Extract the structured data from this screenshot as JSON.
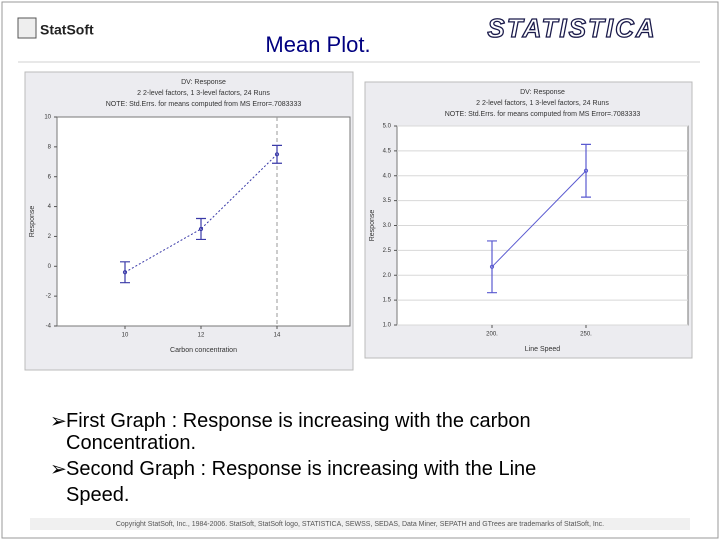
{
  "header": {
    "logo": "StatSoft",
    "title": "Mean Plot.",
    "brand": "STATISTICA"
  },
  "chart_data": [
    {
      "type": "line",
      "subtitle": [
        "DV: Response",
        "2 2-level factors, 1 3-level factors, 24 Runs",
        "NOTE: Std.Errs. for means computed from MS Error=.7083333"
      ],
      "x_label": "Carbon concentration",
      "y_label": "Response",
      "categories": [
        "10",
        "12",
        "14"
      ],
      "series": [
        {
          "color": "#3a3aa8",
          "values": [
            -0.4,
            2.5,
            7.5
          ],
          "errors": [
            0.7,
            0.7,
            0.6
          ]
        }
      ],
      "ylim": [
        -4,
        10
      ],
      "yticks": [
        -4,
        -2,
        0,
        2,
        4,
        6,
        8,
        10
      ],
      "grid": false
    },
    {
      "type": "line",
      "subtitle": [
        "DV: Response",
        "2 2-level factors, 1 3-level factors, 24 Runs",
        "NOTE: Std.Errs. for means computed from MS Error=.7083333"
      ],
      "x_label": "Line Speed",
      "y_label": "Response",
      "categories": [
        "200.",
        "250."
      ],
      "series": [
        {
          "color": "#5a5ad0",
          "values": [
            2.17,
            4.1
          ],
          "errors": [
            0.52,
            0.53
          ]
        }
      ],
      "ylim": [
        1,
        5
      ],
      "yticks": [
        {
          "value": 1,
          "label": "1.0"
        },
        {
          "value": 1.5,
          "label": "1.5"
        },
        {
          "value": 2,
          "label": "2.0"
        },
        {
          "value": 2.5,
          "label": "2.5"
        },
        {
          "value": 3,
          "label": "3.0"
        },
        {
          "value": 3.5,
          "label": "3.5"
        },
        {
          "value": 4,
          "label": "4.0"
        },
        {
          "value": 4.5,
          "label": "4.5"
        },
        {
          "value": 5,
          "label": "5.0"
        }
      ],
      "grid": true
    }
  ],
  "bullets": [
    "First Graph : Response is increasing with the carbon Concentration.",
    "Second Graph : Response is increasing with the Line Speed."
  ],
  "footer": "Copyright StatSoft, Inc., 1984-2006. StatSoft, StatSoft logo, STATISTICA, SEWSS, SEDAS, Data Miner, SEPATH and GTrees are trademarks of StatSoft, Inc."
}
